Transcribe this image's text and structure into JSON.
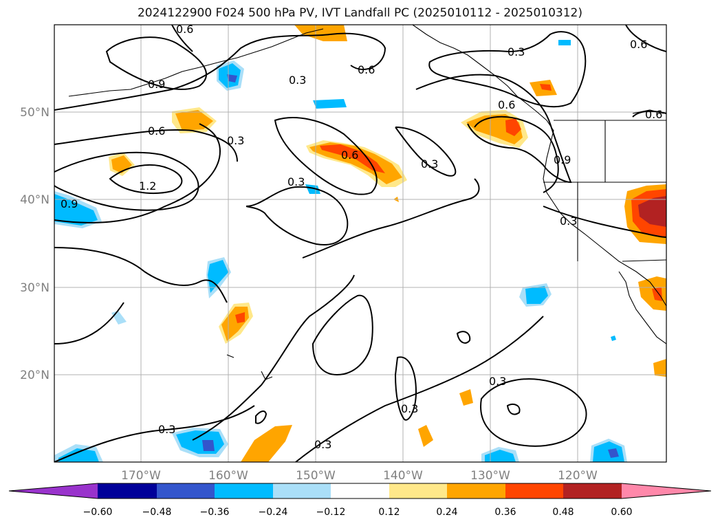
{
  "title": "2024122900 F024 500 hPa PV, IVT Landfall PC (2025010112 - 2025010312)",
  "lat_labels": [
    "50°N",
    "40°N",
    "30°N",
    "20°N"
  ],
  "lon_labels": [
    "170°W",
    "160°W",
    "150°W",
    "140°W",
    "130°W",
    "120°W"
  ],
  "contour_labels": [
    "0.6",
    "0.9",
    "0.3",
    "0.6",
    "0.3",
    "0.6",
    "0.3",
    "0.6",
    "1.2",
    "0.9",
    "0.3",
    "0.6",
    "0.3",
    "0.6",
    "0.9",
    "0.3",
    "0.3",
    "0.3",
    "0.3",
    "0.3",
    "0.6"
  ],
  "colorbar": {
    "ticks": [
      "−0.60",
      "−0.48",
      "−0.36",
      "−0.24",
      "−0.12",
      "0.12",
      "0.24",
      "0.36",
      "0.48",
      "0.60"
    ],
    "colors": [
      "#9933cc",
      "#000099",
      "#3355cc",
      "#00bbff",
      "#aadff8",
      "#ffffff",
      "#ffe88a",
      "#ffa500",
      "#ff4500",
      "#b22222",
      "#ff88aa"
    ]
  }
}
